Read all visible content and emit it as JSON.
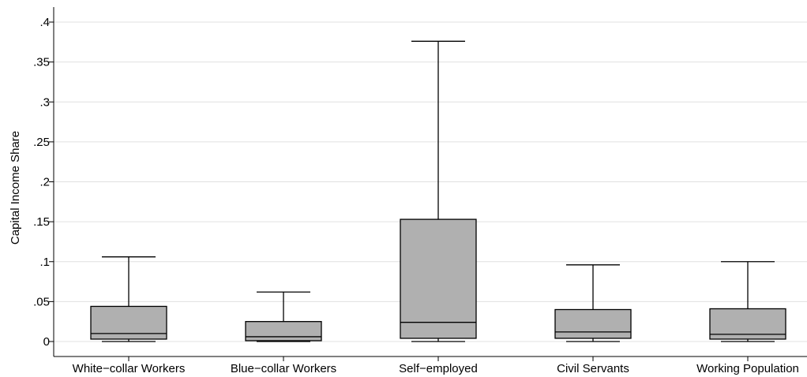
{
  "chart_data": {
    "type": "box",
    "title": "",
    "xlabel": "",
    "ylabel": "Capital Income Share",
    "ylim": [
      0,
      0.415
    ],
    "yticks": [
      0,
      0.05,
      0.1,
      0.15,
      0.2,
      0.25,
      0.3,
      0.35,
      0.4
    ],
    "ytick_labels": [
      "0",
      ".05",
      ".1",
      ".15",
      ".2",
      ".25",
      ".3",
      ".35",
      ".4"
    ],
    "grid": true,
    "colors": {
      "box_fill": "#b0b0b0",
      "line": "#000000",
      "grid": "#e0e0e0"
    },
    "categories": [
      "White−collar Workers",
      "Blue−collar Workers",
      "Self−employed",
      "Civil Servants",
      "Working Population"
    ],
    "boxes": [
      {
        "category": "White−collar Workers",
        "whisker_low": 0.0,
        "q1": 0.003,
        "median": 0.01,
        "q3": 0.044,
        "whisker_high": 0.106
      },
      {
        "category": "Blue−collar Workers",
        "whisker_low": 0.0,
        "q1": 0.001,
        "median": 0.006,
        "q3": 0.025,
        "whisker_high": 0.062
      },
      {
        "category": "Self−employed",
        "whisker_low": 0.0,
        "q1": 0.004,
        "median": 0.024,
        "q3": 0.153,
        "whisker_high": 0.376
      },
      {
        "category": "Civil Servants",
        "whisker_low": 0.0,
        "q1": 0.004,
        "median": 0.012,
        "q3": 0.04,
        "whisker_high": 0.096
      },
      {
        "category": "Working Population",
        "whisker_low": 0.0,
        "q1": 0.003,
        "median": 0.009,
        "q3": 0.041,
        "whisker_high": 0.1
      }
    ]
  }
}
